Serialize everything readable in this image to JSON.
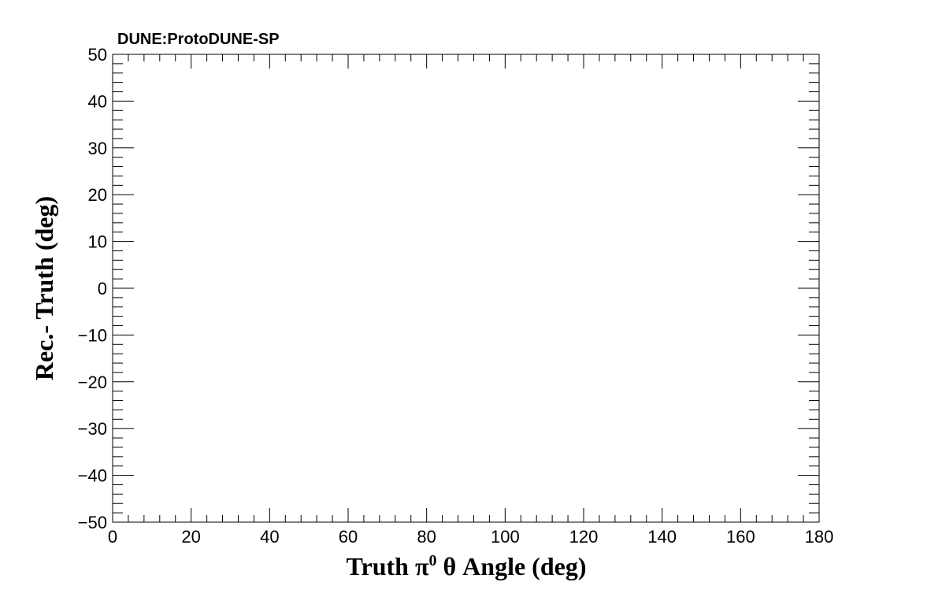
{
  "chart_data": {
    "type": "scatter",
    "banner": "DUNE:ProtoDUNE-SP",
    "xlabel": {
      "prefix": "Truth  ",
      "symbol": "π",
      "superscript": "0",
      "suffix": "  θ Angle (deg)"
    },
    "ylabel": "Rec.- Truth (deg)",
    "xlim": [
      0,
      180
    ],
    "ylim": [
      -50,
      50
    ],
    "x_ticks": [
      "0",
      "20",
      "40",
      "60",
      "80",
      "100",
      "120",
      "140",
      "160",
      "180"
    ],
    "y_ticks": [
      "−50",
      "−40",
      "−30",
      "−20",
      "−10",
      "0",
      "10",
      "20",
      "30",
      "40",
      "50"
    ],
    "x": [],
    "y": [],
    "grid": false,
    "legend": "none"
  }
}
